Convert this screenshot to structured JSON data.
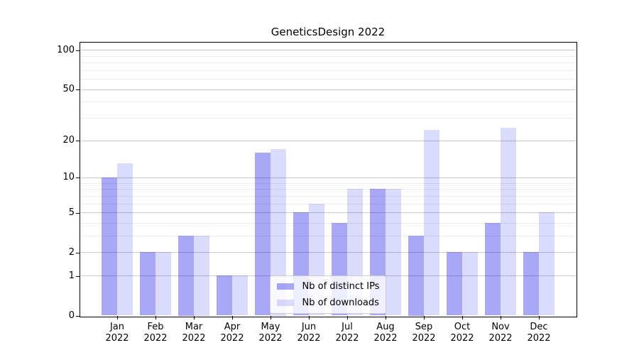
{
  "chart_data": {
    "type": "bar",
    "title": "GeneticsDesign 2022",
    "categories": [
      "Jan",
      "Feb",
      "Mar",
      "Apr",
      "May",
      "Jun",
      "Jul",
      "Aug",
      "Sep",
      "Oct",
      "Nov",
      "Dec"
    ],
    "year_label": "2022",
    "series": [
      {
        "name": "Nb of distinct IPs",
        "color": "rgba(0,0,230,0.34)",
        "values": [
          10,
          2,
          3,
          1,
          16,
          5,
          4,
          8,
          3,
          2,
          4,
          2
        ]
      },
      {
        "name": "Nb of downloads",
        "color": "rgba(0,0,230,0.14)",
        "values": [
          13,
          2,
          3,
          1,
          17,
          6,
          8,
          8,
          24,
          2,
          25,
          5
        ]
      }
    ],
    "yscale": "log1p",
    "ylim": [
      0,
      114
    ],
    "y_major_ticks": [
      0,
      1,
      2,
      5,
      10,
      20,
      50,
      100
    ],
    "y_minor_ticks": [
      3,
      4,
      6,
      7,
      8,
      9,
      30,
      40,
      60,
      70,
      80,
      90
    ],
    "grid": true,
    "legend_position": "lower-center",
    "style": {
      "major_grid_color": "#c9c9c9",
      "minor_grid_color": "#ececec",
      "spine_color": "#000000",
      "text_color": "#000000",
      "background": "#ffffff"
    }
  }
}
